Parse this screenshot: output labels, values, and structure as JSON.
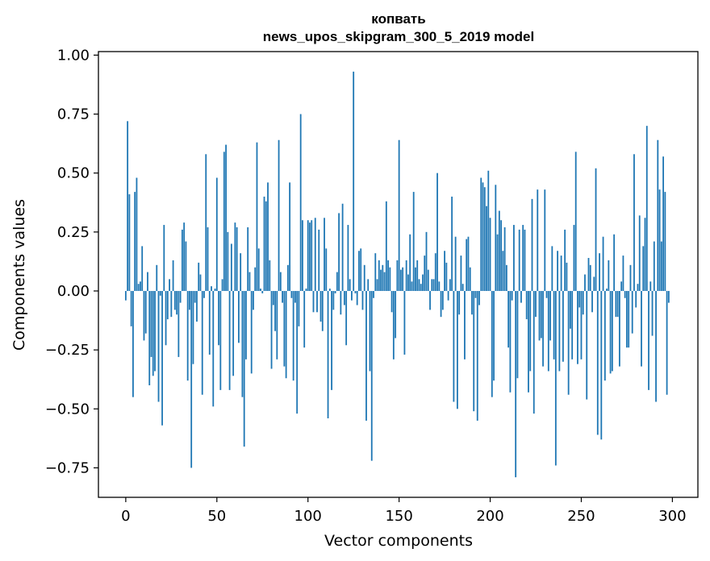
{
  "chart_data": {
    "type": "bar",
    "title_line1": "копвать",
    "title_line2": "news_upos_skipgram_300_5_2019 model",
    "xlabel": "Vector components",
    "ylabel": "Components values",
    "xlim": [
      -15,
      314
    ],
    "ylim": [
      -0.875,
      1.015
    ],
    "xticks": [
      0,
      50,
      100,
      150,
      200,
      250,
      300
    ],
    "xtick_labels": [
      "0",
      "50",
      "100",
      "150",
      "200",
      "250",
      "300"
    ],
    "yticks": [
      1.0,
      0.75,
      0.5,
      0.25,
      0.0,
      -0.25,
      -0.5,
      -0.75
    ],
    "ytick_labels": [
      "1.00",
      "0.75",
      "0.50",
      "0.25",
      "0.00",
      "−0.25",
      "−0.50",
      "−0.75"
    ],
    "bar_color": "#1f77b4",
    "values": [
      -0.04,
      0.72,
      0.41,
      -0.15,
      -0.45,
      0.42,
      0.48,
      0.03,
      0.04,
      0.19,
      -0.21,
      -0.18,
      0.08,
      -0.4,
      -0.28,
      -0.36,
      -0.34,
      0.11,
      -0.47,
      -0.02,
      -0.57,
      0.28,
      -0.23,
      -0.12,
      0.05,
      -0.11,
      0.13,
      -0.08,
      -0.1,
      -0.28,
      -0.05,
      0.26,
      0.29,
      0.21,
      -0.38,
      -0.08,
      -0.75,
      -0.31,
      -0.05,
      -0.13,
      0.12,
      0.07,
      -0.44,
      -0.03,
      0.58,
      0.27,
      -0.27,
      0.02,
      -0.49,
      0.01,
      0.48,
      -0.23,
      -0.42,
      0.05,
      0.59,
      0.62,
      0.25,
      -0.42,
      0.2,
      -0.36,
      0.29,
      0.27,
      -0.22,
      0.16,
      -0.45,
      -0.66,
      -0.29,
      0.27,
      0.08,
      -0.35,
      -0.08,
      0.1,
      0.63,
      0.18,
      0.01,
      -0.01,
      0.4,
      0.38,
      0.46,
      0.13,
      -0.33,
      -0.06,
      -0.17,
      -0.29,
      0.64,
      0.08,
      -0.05,
      -0.32,
      -0.37,
      0.11,
      0.46,
      -0.03,
      -0.38,
      -0.05,
      -0.52,
      -0.15,
      0.75,
      0.3,
      -0.24,
      0.01,
      0.3,
      0.29,
      0.3,
      -0.09,
      0.31,
      -0.09,
      0.26,
      -0.13,
      -0.17,
      0.31,
      0.18,
      -0.54,
      0.01,
      -0.42,
      -0.08,
      -0.01,
      0.08,
      0.33,
      -0.1,
      0.37,
      -0.06,
      -0.23,
      0.28,
      0.05,
      -0.04,
      0.93,
      -0.01,
      -0.06,
      0.17,
      0.18,
      -0.08,
      0.11,
      -0.55,
      0.05,
      -0.34,
      -0.72,
      -0.03,
      0.16,
      0.05,
      0.13,
      0.09,
      0.11,
      0.08,
      0.38,
      0.13,
      0.1,
      -0.09,
      -0.29,
      -0.2,
      0.13,
      0.64,
      0.09,
      0.1,
      -0.27,
      0.13,
      0.07,
      0.24,
      0.04,
      0.42,
      0.1,
      0.13,
      0.05,
      0.03,
      0.07,
      0.15,
      0.25,
      0.09,
      -0.08,
      0.05,
      0.05,
      0.16,
      0.5,
      0.04,
      -0.11,
      -0.08,
      0.17,
      0.12,
      -0.04,
      0.05,
      0.4,
      -0.47,
      0.23,
      -0.5,
      -0.1,
      0.15,
      0.03,
      -0.29,
      0.22,
      0.23,
      0.1,
      -0.1,
      -0.51,
      -0.03,
      -0.55,
      -0.06,
      0.48,
      0.46,
      0.44,
      0.36,
      0.51,
      0.31,
      -0.45,
      -0.38,
      0.45,
      0.24,
      0.34,
      0.3,
      0.17,
      0.27,
      0.11,
      -0.24,
      -0.43,
      -0.04,
      0.28,
      -0.79,
      -0.37,
      0.26,
      -0.05,
      0.28,
      0.26,
      -0.12,
      -0.43,
      -0.34,
      0.39,
      -0.52,
      -0.11,
      0.43,
      -0.21,
      -0.2,
      -0.32,
      0.43,
      -0.03,
      -0.34,
      -0.21,
      0.19,
      -0.29,
      -0.74,
      0.17,
      -0.34,
      0.15,
      -0.3,
      0.26,
      0.12,
      -0.44,
      -0.16,
      -0.29,
      0.28,
      0.59,
      -0.31,
      -0.07,
      -0.29,
      -0.1,
      0.07,
      -0.46,
      0.14,
      0.11,
      -0.09,
      0.06,
      0.52,
      -0.61,
      0.16,
      -0.63,
      0.23,
      -0.38,
      0.01,
      0.13,
      -0.35,
      -0.34,
      0.24,
      -0.11,
      -0.11,
      -0.32,
      0.04,
      0.15,
      -0.03,
      -0.24,
      -0.24,
      0.11,
      -0.18,
      0.58,
      -0.07,
      0.03,
      0.32,
      -0.32,
      0.19,
      0.31,
      0.7,
      -0.42,
      0.04,
      -0.19,
      0.21,
      -0.47,
      0.64,
      0.43,
      0.21,
      0.57,
      0.42,
      -0.44,
      -0.05
    ]
  }
}
